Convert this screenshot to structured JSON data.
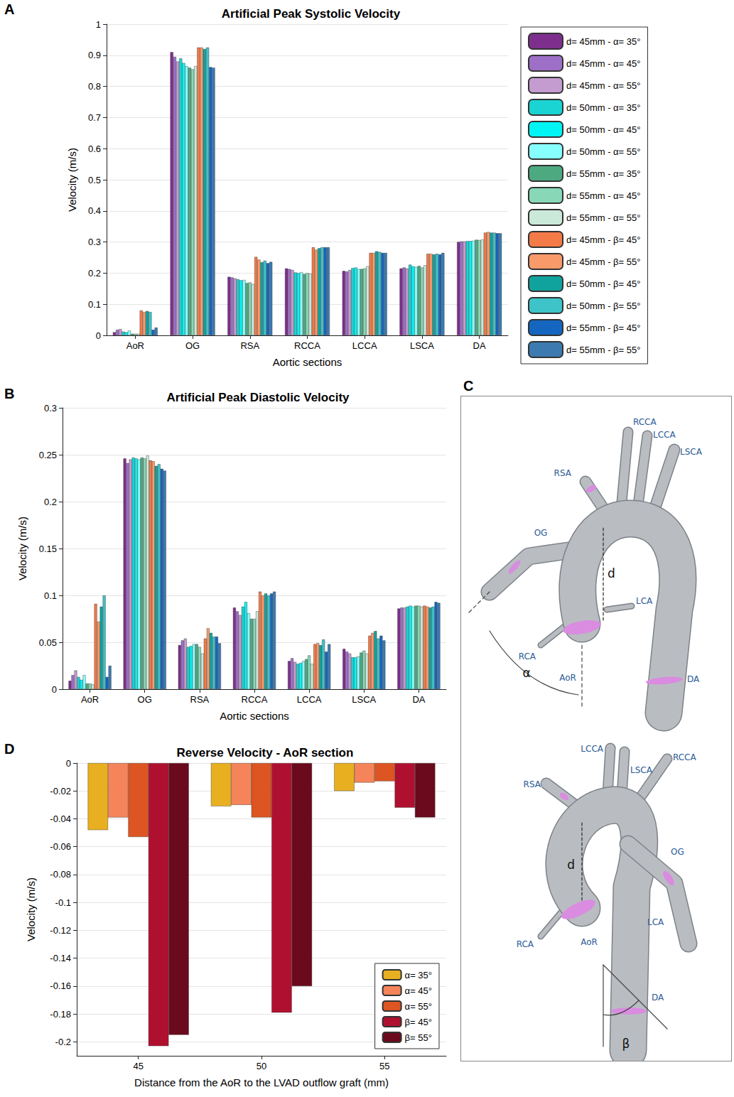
{
  "chart_data": [
    {
      "panel": "A",
      "type": "bar",
      "title": "Artificial Peak Systolic Velocity",
      "x_label": "Aortic sections",
      "y_label": "Velocity (m/s)",
      "categories": [
        "AoR",
        "OG",
        "RSA",
        "RCCA",
        "LCCA",
        "LSCA",
        "DA"
      ],
      "series": [
        {
          "name": "d= 45mm - α= 35°",
          "color": "#7e2f8e",
          "values": [
            0.01,
            0.91,
            0.188,
            0.215,
            0.207,
            0.215,
            0.3
          ]
        },
        {
          "name": "d= 45mm - α= 45°",
          "color": "#9e6fc7",
          "values": [
            0.018,
            0.895,
            0.186,
            0.213,
            0.205,
            0.218,
            0.302
          ]
        },
        {
          "name": "d= 45mm - α= 55°",
          "color": "#c49ccf",
          "values": [
            0.02,
            0.88,
            0.183,
            0.21,
            0.21,
            0.215,
            0.302
          ]
        },
        {
          "name": "d= 50mm - α= 35°",
          "color": "#1ad3d3",
          "values": [
            0.012,
            0.89,
            0.18,
            0.202,
            0.216,
            0.227,
            0.303
          ]
        },
        {
          "name": "d= 50mm - α= 45°",
          "color": "#00f5f5",
          "values": [
            0.01,
            0.875,
            0.177,
            0.2,
            0.218,
            0.222,
            0.303
          ]
        },
        {
          "name": "d= 50mm - α= 55°",
          "color": "#88ffff",
          "values": [
            0.015,
            0.865,
            0.178,
            0.203,
            0.213,
            0.22,
            0.304
          ]
        },
        {
          "name": "d= 55mm - α= 35°",
          "color": "#4daa80",
          "values": [
            0.005,
            0.86,
            0.168,
            0.197,
            0.213,
            0.223,
            0.307
          ]
        },
        {
          "name": "d= 55mm - α= 45°",
          "color": "#88d8b8",
          "values": [
            0.005,
            0.855,
            0.17,
            0.2,
            0.215,
            0.218,
            0.306
          ]
        },
        {
          "name": "d= 55mm - α= 55°",
          "color": "#cbe9d8",
          "values": [
            0.005,
            0.865,
            0.165,
            0.198,
            0.222,
            0.225,
            0.308
          ]
        },
        {
          "name": "d= 45mm - β= 45°",
          "color": "#f47a48",
          "values": [
            0.08,
            0.925,
            0.252,
            0.283,
            0.265,
            0.262,
            0.33
          ]
        },
        {
          "name": "d= 45mm - β= 55°",
          "color": "#f99a6a",
          "values": [
            0.075,
            0.925,
            0.243,
            0.275,
            0.265,
            0.262,
            0.332
          ]
        },
        {
          "name": "d= 50mm - β= 45°",
          "color": "#10a39e",
          "values": [
            0.078,
            0.92,
            0.235,
            0.28,
            0.27,
            0.26,
            0.33
          ]
        },
        {
          "name": "d= 50mm - β= 55°",
          "color": "#3ec3c9",
          "values": [
            0.075,
            0.925,
            0.24,
            0.283,
            0.268,
            0.262,
            0.33
          ]
        },
        {
          "name": "d= 55mm - β= 45°",
          "color": "#1566c0",
          "values": [
            0.018,
            0.862,
            0.232,
            0.283,
            0.265,
            0.26,
            0.328
          ]
        },
        {
          "name": "d= 55mm - β= 55°",
          "color": "#3c7ab0",
          "values": [
            0.025,
            0.86,
            0.236,
            0.283,
            0.265,
            0.265,
            0.328
          ]
        }
      ],
      "ylim": [
        0,
        1
      ],
      "yticks": [
        0,
        0.1,
        0.2,
        0.3,
        0.4,
        0.5,
        0.6,
        0.7,
        0.8,
        0.9,
        1
      ],
      "grid": true,
      "legend": "right"
    },
    {
      "panel": "B",
      "type": "bar",
      "title": "Artificial Peak Diastolic Velocity",
      "x_label": "Aortic sections",
      "y_label": "Velocity (m/s)",
      "categories": [
        "AoR",
        "OG",
        "RSA",
        "RCCA",
        "LCCA",
        "LSCA",
        "DA"
      ],
      "series": [
        {
          "color": "#7e2f8e",
          "values": [
            0.009,
            0.246,
            0.047,
            0.087,
            0.03,
            0.043,
            0.086
          ]
        },
        {
          "color": "#9e6fc7",
          "values": [
            0.015,
            0.241,
            0.052,
            0.083,
            0.033,
            0.04,
            0.087
          ]
        },
        {
          "color": "#c49ccf",
          "values": [
            0.02,
            0.245,
            0.054,
            0.079,
            0.029,
            0.038,
            0.087
          ]
        },
        {
          "color": "#1ad3d3",
          "values": [
            0.013,
            0.247,
            0.045,
            0.088,
            0.027,
            0.034,
            0.088
          ]
        },
        {
          "color": "#00f5f5",
          "values": [
            0.01,
            0.246,
            0.046,
            0.093,
            0.028,
            0.034,
            0.089
          ]
        },
        {
          "color": "#88ffff",
          "values": [
            0.015,
            0.245,
            0.048,
            0.081,
            0.03,
            0.035,
            0.088
          ]
        },
        {
          "color": "#4daa80",
          "values": [
            0.006,
            0.247,
            0.048,
            0.075,
            0.032,
            0.039,
            0.089
          ]
        },
        {
          "color": "#88d8b8",
          "values": [
            0.006,
            0.246,
            0.045,
            0.075,
            0.036,
            0.041,
            0.089
          ]
        },
        {
          "color": "#cbe9d8",
          "values": [
            0.005,
            0.249,
            0.038,
            0.083,
            0.027,
            0.038,
            0.088
          ]
        },
        {
          "color": "#f47a48",
          "values": [
            0.091,
            0.244,
            0.054,
            0.104,
            0.048,
            0.057,
            0.089
          ]
        },
        {
          "color": "#f99a6a",
          "values": [
            0.072,
            0.243,
            0.065,
            0.1,
            0.049,
            0.06,
            0.088
          ]
        },
        {
          "color": "#10a39e",
          "values": [
            0.088,
            0.238,
            0.06,
            0.102,
            0.047,
            0.062,
            0.087
          ]
        },
        {
          "color": "#3ec3c9",
          "values": [
            0.1,
            0.24,
            0.056,
            0.1,
            0.053,
            0.054,
            0.088
          ]
        },
        {
          "color": "#1566c0",
          "values": [
            0.013,
            0.235,
            0.056,
            0.102,
            0.04,
            0.057,
            0.093
          ]
        },
        {
          "color": "#3c7ab0",
          "values": [
            0.025,
            0.233,
            0.049,
            0.104,
            0.048,
            0.052,
            0.092
          ]
        }
      ],
      "ylim": [
        0,
        0.3
      ],
      "yticks": [
        0,
        0.05,
        0.1,
        0.15,
        0.2,
        0.25,
        0.3
      ],
      "grid": true
    },
    {
      "panel": "D",
      "type": "bar",
      "title": "Reverse Velocity - AoR section",
      "x_label": "Distance from the AoR to the LVAD outflow graft (mm)",
      "y_label": "Velocity (m/s)",
      "categories": [
        "45",
        "50",
        "55"
      ],
      "series": [
        {
          "name": "α= 35°",
          "color": "#e8b020",
          "values": [
            -0.048,
            -0.031,
            -0.02
          ]
        },
        {
          "name": "α= 45°",
          "color": "#f5845a",
          "values": [
            -0.039,
            -0.03,
            -0.014
          ]
        },
        {
          "name": "α= 55°",
          "color": "#dd5522",
          "values": [
            -0.053,
            -0.039,
            -0.013
          ]
        },
        {
          "name": "β= 45°",
          "color": "#b01030",
          "values": [
            -0.203,
            -0.179,
            -0.032
          ]
        },
        {
          "name": "β= 55°",
          "color": "#6a0a1c",
          "values": [
            -0.195,
            -0.16,
            -0.039
          ]
        }
      ],
      "ylim": [
        -0.21,
        0
      ],
      "yticks": [
        -0.2,
        -0.18,
        -0.16,
        -0.14,
        -0.12,
        -0.1,
        -0.08,
        -0.06,
        -0.04,
        -0.02,
        0
      ],
      "grid": true,
      "legend": "lower right"
    }
  ],
  "diagram": {
    "panel": "C",
    "views": [
      {
        "labels": [
          "RCCA",
          "LCCA",
          "LSCA",
          "RSA",
          "OG",
          "d",
          "RCA",
          "LCA",
          "AoR",
          "DA",
          "α"
        ]
      },
      {
        "labels": [
          "LCCA",
          "RCCA",
          "LSCA",
          "RSA",
          "OG",
          "d",
          "LCA",
          "RCA",
          "AoR",
          "DA",
          "β"
        ]
      }
    ]
  }
}
